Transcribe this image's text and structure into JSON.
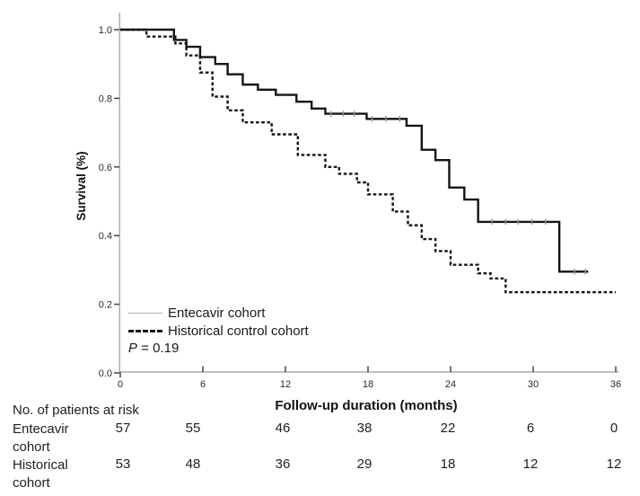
{
  "chart_data": {
    "type": "line",
    "subtype": "kaplan-meier-step",
    "title": "",
    "xlabel": "Follow-up duration (months)",
    "ylabel": "Survival (%)",
    "xlim": [
      0,
      36
    ],
    "ylim": [
      0.0,
      1.0
    ],
    "x_ticks": [
      0,
      6,
      12,
      18,
      24,
      30,
      36
    ],
    "y_ticks": [
      0.0,
      0.2,
      0.4,
      0.6,
      0.8,
      1.0
    ],
    "grid": false,
    "legend_position": "lower-left",
    "annotation": "P = 0.19",
    "series": [
      {
        "name": "Entecavir cohort",
        "line_style": "solid",
        "color": "#141414",
        "steps": [
          [
            0,
            1.0
          ],
          [
            3.9,
            0.97
          ],
          [
            4.8,
            0.95
          ],
          [
            5.8,
            0.92
          ],
          [
            6.9,
            0.9
          ],
          [
            7.8,
            0.87
          ],
          [
            8.9,
            0.84
          ],
          [
            10.0,
            0.825
          ],
          [
            11.3,
            0.81
          ],
          [
            12.8,
            0.79
          ],
          [
            13.9,
            0.77
          ],
          [
            14.9,
            0.755
          ],
          [
            17.9,
            0.74
          ],
          [
            20.8,
            0.72
          ],
          [
            21.9,
            0.65
          ],
          [
            22.9,
            0.62
          ],
          [
            23.9,
            0.54
          ],
          [
            25.0,
            0.505
          ],
          [
            26.0,
            0.44
          ],
          [
            31.9,
            0.295
          ]
        ],
        "end_x": 34.0,
        "censor_marks": [
          [
            15.3,
            0.755
          ],
          [
            16.2,
            0.755
          ],
          [
            17.0,
            0.755
          ],
          [
            18.3,
            0.74
          ],
          [
            19.3,
            0.74
          ],
          [
            20.3,
            0.74
          ],
          [
            27.0,
            0.44
          ],
          [
            28.0,
            0.44
          ],
          [
            28.9,
            0.44
          ],
          [
            29.9,
            0.44
          ],
          [
            30.9,
            0.44
          ],
          [
            33.0,
            0.295
          ],
          [
            33.8,
            0.295
          ]
        ]
      },
      {
        "name": "Historical control cohort",
        "line_style": "dashed",
        "color": "#141414",
        "steps": [
          [
            0,
            1.0
          ],
          [
            1.9,
            0.98
          ],
          [
            4.0,
            0.96
          ],
          [
            4.8,
            0.925
          ],
          [
            5.8,
            0.875
          ],
          [
            6.7,
            0.805
          ],
          [
            7.8,
            0.765
          ],
          [
            8.9,
            0.73
          ],
          [
            11.0,
            0.695
          ],
          [
            12.9,
            0.635
          ],
          [
            14.9,
            0.6
          ],
          [
            15.9,
            0.58
          ],
          [
            17.2,
            0.555
          ],
          [
            18.0,
            0.52
          ],
          [
            19.8,
            0.47
          ],
          [
            20.9,
            0.43
          ],
          [
            21.9,
            0.39
          ],
          [
            22.9,
            0.355
          ],
          [
            24.0,
            0.315
          ],
          [
            26.0,
            0.29
          ],
          [
            26.9,
            0.275
          ],
          [
            28.0,
            0.235
          ]
        ],
        "end_x": 36.0,
        "censor_marks": []
      }
    ],
    "colors": {
      "axis_line": "#a8a8a8",
      "tick_mark": "#3a3a3a",
      "curve": "#141414",
      "censor_tick": "#8b95ad",
      "legend_solid_sample": "#b3b3b3"
    }
  },
  "legend": {
    "items": [
      {
        "label": "Entecavir cohort",
        "style": "solid"
      },
      {
        "label": "Historical control cohort",
        "style": "dashed"
      }
    ],
    "p_symbol": "P",
    "p_rest": " = 0.19"
  },
  "risk_table": {
    "title": "No. of patients at risk",
    "time_points": [
      0,
      6,
      12,
      18,
      24,
      30,
      36
    ],
    "rows": [
      {
        "label_line1": "Entecavir",
        "label_line2": "cohort",
        "counts": [
          57,
          55,
          46,
          38,
          22,
          6,
          0
        ]
      },
      {
        "label_line1": "Historical",
        "label_line2": "cohort",
        "counts": [
          53,
          48,
          36,
          29,
          18,
          12,
          12
        ]
      }
    ]
  }
}
